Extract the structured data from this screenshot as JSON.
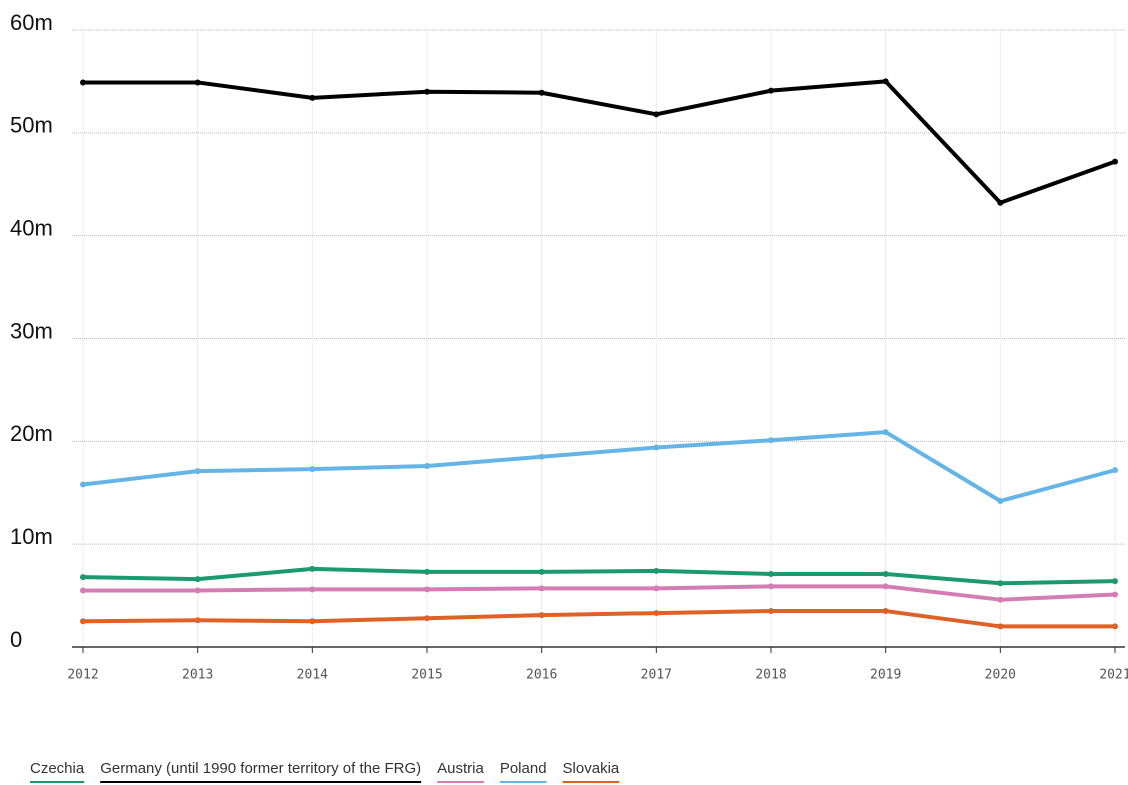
{
  "chart_data": {
    "type": "line",
    "x": [
      2012,
      2013,
      2014,
      2015,
      2016,
      2017,
      2018,
      2019,
      2020,
      2021
    ],
    "xlim": [
      2012,
      2021
    ],
    "xticks": [
      2012,
      2013,
      2014,
      2015,
      2016,
      2017,
      2018,
      2019,
      2020,
      2021
    ],
    "ylim": [
      0,
      60
    ],
    "yticks": [
      0,
      {
        "value": 10,
        "label": "10m"
      },
      {
        "value": 20,
        "label": "20m"
      },
      {
        "value": 30,
        "label": "30m"
      },
      {
        "value": 40,
        "label": "40m"
      },
      {
        "value": 50,
        "label": "50m"
      },
      {
        "value": 60,
        "label": "60m"
      }
    ],
    "grid": true,
    "legend": "bottom",
    "series": [
      {
        "name": "Czechia",
        "color": "#1a9a6e",
        "values": [
          6.8,
          6.6,
          7.6,
          7.3,
          7.3,
          7.4,
          7.1,
          7.1,
          6.2,
          6.4
        ]
      },
      {
        "name": "Germany (until 1990 former territory of the FRG)",
        "color": "#000000",
        "values": [
          54.9,
          54.9,
          53.4,
          54.0,
          53.9,
          51.8,
          54.1,
          55.0,
          43.2,
          47.2
        ]
      },
      {
        "name": "Austria",
        "color": "#d47db5",
        "values": [
          5.5,
          5.5,
          5.6,
          5.6,
          5.7,
          5.7,
          5.9,
          5.9,
          4.6,
          5.1
        ]
      },
      {
        "name": "Poland",
        "color": "#64b5e6",
        "values": [
          15.8,
          17.1,
          17.3,
          17.6,
          18.5,
          19.4,
          20.1,
          20.9,
          14.2,
          17.2
        ]
      },
      {
        "name": "Slovakia",
        "color": "#de6227",
        "values": [
          2.5,
          2.6,
          2.5,
          2.8,
          3.1,
          3.3,
          3.5,
          3.5,
          2.0,
          2.0
        ]
      }
    ]
  }
}
